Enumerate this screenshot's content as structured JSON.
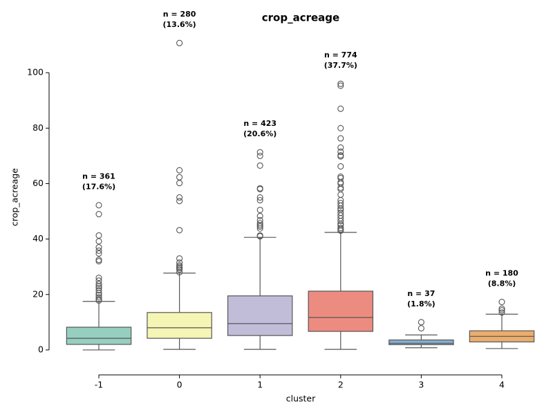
{
  "chart_data": {
    "type": "box",
    "title": "crop_acreage",
    "x_label": "cluster",
    "y_label": "crop_acreage",
    "categories": [
      "-1",
      "0",
      "1",
      "2",
      "3",
      "4"
    ],
    "boxes": [
      {
        "whislo": 0,
        "q1": 2.0,
        "med": 4.2,
        "q3": 8.2,
        "whishi": 17.5,
        "color": "#96cfc0",
        "fliers": [
          52.2,
          49,
          41.3,
          39.2,
          37,
          35.8,
          34.8,
          32.5,
          32,
          26,
          25,
          23.8,
          23,
          22.4,
          21.5,
          20.5,
          19.8,
          19,
          18.3,
          17.8
        ]
      },
      {
        "whislo": 0.2,
        "q1": 4.2,
        "med": 8.0,
        "q3": 13.5,
        "whishi": 27.7,
        "color": "#f5f5b5",
        "fliers": [
          110.7,
          64.8,
          62.3,
          60.2,
          55,
          53.7,
          43.2,
          33,
          31.5,
          30.5,
          30,
          29.5,
          29,
          28
        ]
      },
      {
        "whislo": 0.2,
        "q1": 5.2,
        "med": 9.5,
        "q3": 19.5,
        "whishi": 40.6,
        "color": "#c1bdd9",
        "fliers": [
          71.3,
          70,
          66.5,
          58.3,
          58,
          55,
          54,
          50.5,
          48.3,
          46.8,
          45.7,
          45,
          44.5,
          43.8,
          41.3,
          41
        ]
      },
      {
        "whislo": 0.2,
        "q1": 6.7,
        "med": 11.7,
        "q3": 21.2,
        "whishi": 42.4,
        "color": "#ec8c80",
        "fliers": [
          96,
          95.3,
          87,
          80,
          76.3,
          73,
          71.5,
          70.2,
          69.8,
          66.2,
          62.5,
          62,
          60.5,
          60,
          58.5,
          58,
          56,
          54,
          53,
          52,
          51,
          50.5,
          49.5,
          48.5,
          47.5,
          46.5,
          45.5,
          45,
          44,
          43.5,
          43
        ]
      },
      {
        "whislo": 0.8,
        "q1": 1.9,
        "med": 2.4,
        "q3": 3.6,
        "whishi": 5.4,
        "color": "#88aed0",
        "fliers": [
          10,
          7.8
        ]
      },
      {
        "whislo": 0.5,
        "q1": 2.9,
        "med": 4.9,
        "q3": 6.9,
        "whishi": 12.9,
        "color": "#eaad6d",
        "fliers": [
          17.3,
          14.9,
          14.3,
          13.5
        ]
      }
    ],
    "annotations": [
      {
        "n": "n = 361",
        "pct": "(17.6%)"
      },
      {
        "n": "n = 280",
        "pct": "(13.6%)"
      },
      {
        "n": "n = 423",
        "pct": "(20.6%)"
      },
      {
        "n": "n = 774",
        "pct": "(37.7%)"
      },
      {
        "n": "n = 37",
        "pct": "(1.8%)"
      },
      {
        "n": "n = 180",
        "pct": "(8.8%)"
      }
    ],
    "ylim": [
      -9,
      115
    ],
    "yticks": [
      0,
      20,
      40,
      60,
      80,
      100
    ]
  }
}
